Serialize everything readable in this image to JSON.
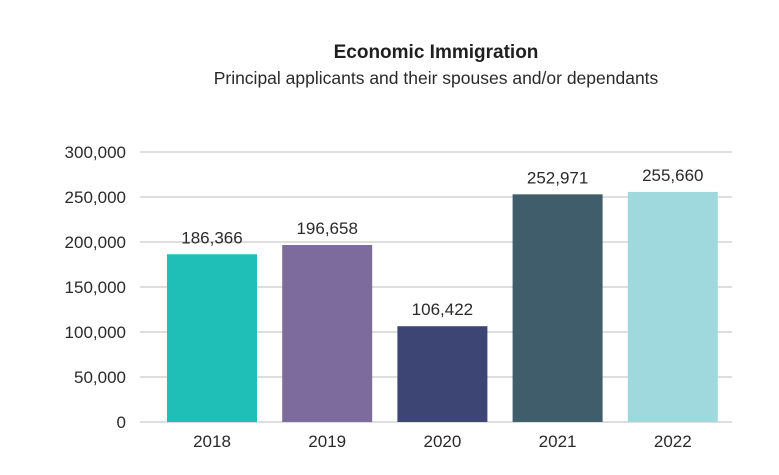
{
  "chart_data": {
    "type": "bar",
    "title": "Economic Immigration",
    "subtitle": "Principal applicants and their spouses and/or dependants",
    "categories": [
      "2018",
      "2019",
      "2020",
      "2021",
      "2022"
    ],
    "values": [
      186366,
      196658,
      106422,
      252971,
      255660
    ],
    "data_labels": [
      "186,366",
      "196,658",
      "106,422",
      "252,971",
      "255,660"
    ],
    "colors": [
      "#1fbfb8",
      "#7d6b9e",
      "#3d4575",
      "#3f5d6b",
      "#9fd9de"
    ],
    "ylim": [
      0,
      300000
    ],
    "yticks": [
      0,
      50000,
      100000,
      150000,
      200000,
      250000,
      300000
    ],
    "ytick_labels": [
      "0",
      "50,000",
      "100,000",
      "150,000",
      "200,000",
      "250,000",
      "300,000"
    ],
    "grid": true,
    "xlabel": "",
    "ylabel": ""
  }
}
